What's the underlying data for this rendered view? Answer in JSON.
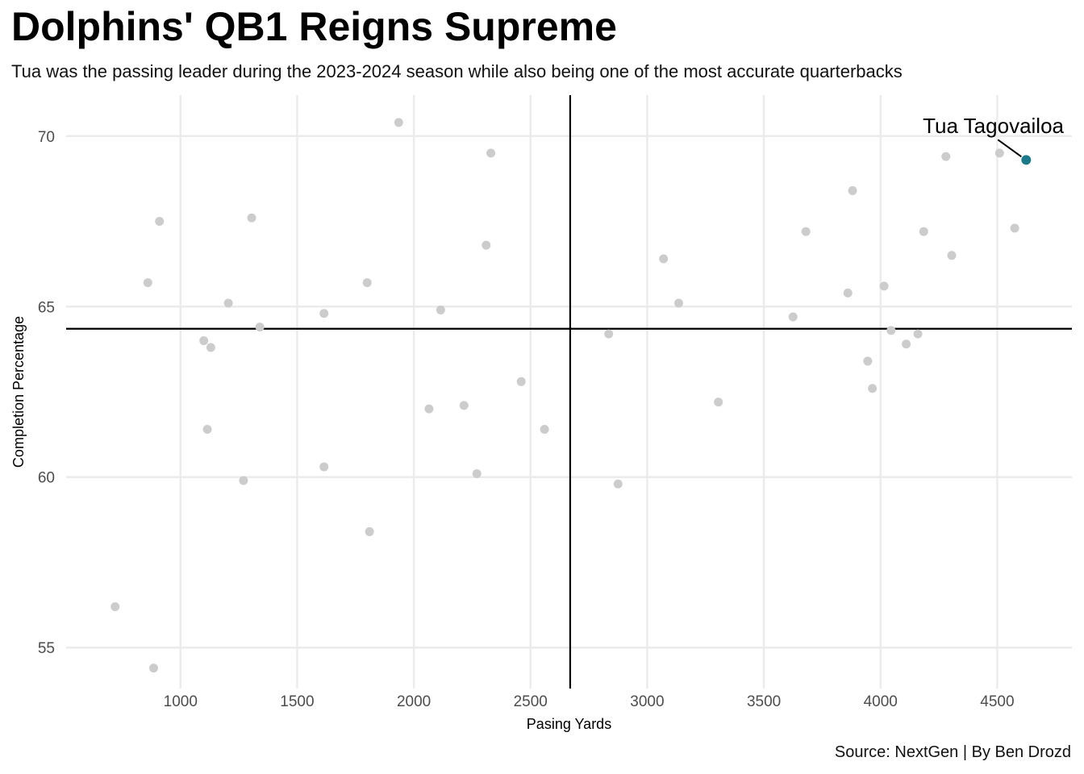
{
  "chart_data": {
    "type": "scatter",
    "title": "Dolphins' QB1 Reigns Supreme",
    "subtitle": "Tua was the passing leader during the 2023-2024 season while also being one of the most accurate quarterbacks",
    "caption": "Source: NextGen | By Ben Drozd",
    "xlabel": "Pasing Yards",
    "ylabel": "Completion Percentage",
    "xlim": [
      510,
      4820
    ],
    "ylim": [
      53.8,
      71.2
    ],
    "x_ticks": [
      1000,
      1500,
      2000,
      2500,
      3000,
      3500,
      4000,
      4500
    ],
    "y_ticks": [
      55,
      60,
      65,
      70
    ],
    "grid": true,
    "ref_lines": {
      "x_mean": 2670,
      "y_mean": 64.35
    },
    "colors": {
      "points": "#cccccc",
      "highlight": "#1a7a89"
    },
    "highlight": {
      "label": "Tua Tagovailoa",
      "x": 4624,
      "y": 69.3
    },
    "points": [
      {
        "x": 720,
        "y": 56.2
      },
      {
        "x": 860,
        "y": 65.7
      },
      {
        "x": 885,
        "y": 54.4
      },
      {
        "x": 910,
        "y": 67.5
      },
      {
        "x": 1100,
        "y": 64.0
      },
      {
        "x": 1115,
        "y": 61.4
      },
      {
        "x": 1130,
        "y": 63.8
      },
      {
        "x": 1205,
        "y": 65.1
      },
      {
        "x": 1270,
        "y": 59.9
      },
      {
        "x": 1305,
        "y": 67.6
      },
      {
        "x": 1340,
        "y": 64.4
      },
      {
        "x": 1615,
        "y": 64.8
      },
      {
        "x": 1615,
        "y": 60.3
      },
      {
        "x": 1800,
        "y": 65.7
      },
      {
        "x": 1810,
        "y": 58.4
      },
      {
        "x": 1935,
        "y": 70.4
      },
      {
        "x": 2065,
        "y": 62.0
      },
      {
        "x": 2115,
        "y": 64.9
      },
      {
        "x": 2215,
        "y": 62.1
      },
      {
        "x": 2270,
        "y": 60.1
      },
      {
        "x": 2310,
        "y": 66.8
      },
      {
        "x": 2330,
        "y": 69.5
      },
      {
        "x": 2460,
        "y": 62.8
      },
      {
        "x": 2560,
        "y": 61.4
      },
      {
        "x": 2835,
        "y": 64.2
      },
      {
        "x": 2875,
        "y": 59.8
      },
      {
        "x": 3070,
        "y": 66.4
      },
      {
        "x": 3135,
        "y": 65.1
      },
      {
        "x": 3305,
        "y": 62.2
      },
      {
        "x": 3625,
        "y": 64.7
      },
      {
        "x": 3680,
        "y": 67.2
      },
      {
        "x": 3860,
        "y": 65.4
      },
      {
        "x": 3880,
        "y": 68.4
      },
      {
        "x": 3945,
        "y": 63.4
      },
      {
        "x": 3965,
        "y": 62.6
      },
      {
        "x": 4015,
        "y": 65.6
      },
      {
        "x": 4045,
        "y": 64.3
      },
      {
        "x": 4110,
        "y": 63.9
      },
      {
        "x": 4160,
        "y": 64.2
      },
      {
        "x": 4185,
        "y": 67.2
      },
      {
        "x": 4280,
        "y": 69.4
      },
      {
        "x": 4305,
        "y": 66.5
      },
      {
        "x": 4510,
        "y": 69.5
      },
      {
        "x": 4575,
        "y": 67.3
      }
    ]
  }
}
